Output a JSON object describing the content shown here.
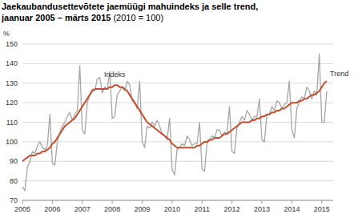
{
  "chart_data": {
    "type": "line",
    "title": [
      "Jaekaubandusettevõtete jaemüügi mahuindeks ja selle trend,",
      "jaanuar 2005 – märts 2015"
    ],
    "subtitle": "(2010 = 100)",
    "y_label": "%",
    "categories": [
      "2005",
      null,
      null,
      null,
      null,
      null,
      null,
      null,
      null,
      null,
      null,
      null,
      "2006",
      null,
      null,
      null,
      null,
      null,
      null,
      null,
      null,
      null,
      null,
      null,
      "2007",
      null,
      null,
      null,
      null,
      null,
      null,
      null,
      null,
      null,
      null,
      null,
      "2008",
      null,
      null,
      null,
      null,
      null,
      null,
      null,
      null,
      null,
      null,
      null,
      "2009",
      null,
      null,
      null,
      null,
      null,
      null,
      null,
      null,
      null,
      null,
      null,
      "2010",
      null,
      null,
      null,
      null,
      null,
      null,
      null,
      null,
      null,
      null,
      null,
      "2011",
      null,
      null,
      null,
      null,
      null,
      null,
      null,
      null,
      null,
      null,
      null,
      "2012",
      null,
      null,
      null,
      null,
      null,
      null,
      null,
      null,
      null,
      null,
      null,
      "2013",
      null,
      null,
      null,
      null,
      null,
      null,
      null,
      null,
      null,
      null,
      null,
      "2014",
      null,
      null,
      null,
      null,
      null,
      null,
      null,
      null,
      null,
      null,
      null,
      "2015",
      null,
      null
    ],
    "series": [
      {
        "name": "Indeks",
        "color": "#a6a6a6",
        "values": [
          77,
          75,
          87,
          90,
          95,
          94,
          98,
          100,
          97,
          96,
          98,
          114,
          89,
          88,
          100,
          105,
          108,
          110,
          113,
          115,
          111,
          114,
          116,
          139,
          106,
          104,
          120,
          124,
          127,
          126,
          132,
          133,
          125,
          128,
          127,
          136,
          112,
          113,
          124,
          126,
          128,
          126,
          131,
          129,
          121,
          120,
          117,
          131,
          100,
          97,
          108,
          107,
          110,
          108,
          111,
          108,
          104,
          103,
          101,
          112,
          86,
          83,
          96,
          97,
          99,
          98,
          103,
          101,
          98,
          99,
          99,
          110,
          86,
          85,
          99,
          101,
          103,
          102,
          106,
          106,
          103,
          105,
          104,
          118,
          95,
          94,
          107,
          110,
          113,
          111,
          116,
          114,
          111,
          113,
          113,
          122,
          101,
          100,
          114,
          114,
          118,
          116,
          121,
          120,
          117,
          119,
          120,
          131,
          106,
          102,
          117,
          120,
          123,
          122,
          128,
          126,
          122,
          126,
          124,
          145,
          110,
          110,
          126
        ]
      },
      {
        "name": "Trend",
        "color": "#c0502f",
        "values": [
          90,
          91,
          92,
          93,
          93,
          93,
          94,
          94,
          95,
          95,
          96,
          97,
          99,
          100,
          102,
          104,
          106,
          108,
          109,
          110,
          111,
          112,
          114,
          116,
          118,
          120,
          122,
          124,
          126,
          127,
          127,
          127,
          127,
          127,
          127,
          128,
          128,
          129,
          129,
          128,
          128,
          127,
          126,
          124,
          122,
          120,
          118,
          116,
          114,
          112,
          110,
          109,
          108,
          107,
          106,
          105,
          104,
          103,
          102,
          101,
          99,
          98,
          97,
          97,
          97,
          97,
          97,
          97,
          97,
          97,
          98,
          98,
          99,
          100,
          100,
          101,
          101,
          102,
          102,
          102,
          103,
          104,
          104,
          105,
          106,
          107,
          108,
          109,
          110,
          110,
          110,
          110,
          111,
          111,
          112,
          112,
          113,
          113,
          114,
          114,
          115,
          115,
          116,
          116,
          117,
          117,
          118,
          119,
          120,
          120,
          120,
          121,
          121,
          122,
          122,
          123,
          124,
          124,
          125,
          126,
          128,
          130,
          131
        ]
      }
    ],
    "ylim": [
      70,
      150
    ],
    "yticks": [
      70,
      80,
      90,
      100,
      110,
      120,
      130,
      140,
      150
    ],
    "grid": true
  }
}
